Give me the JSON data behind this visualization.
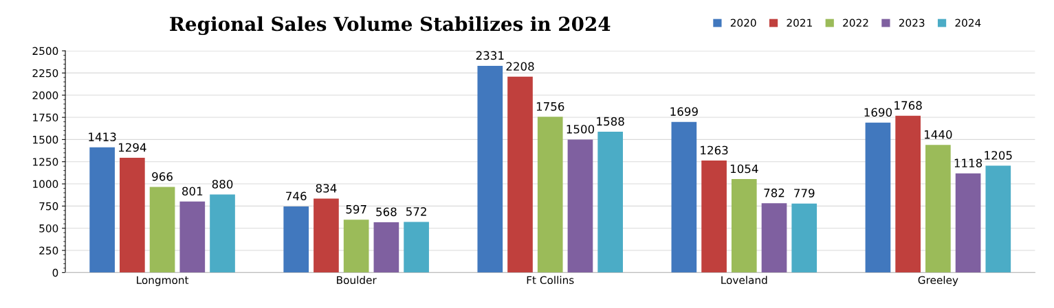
{
  "chart_data": {
    "type": "bar",
    "title": "Regional Sales Volume Stabilizes in 2024",
    "categories": [
      "Longmont",
      "Boulder",
      "Ft Collins",
      "Loveland",
      "Greeley"
    ],
    "series": [
      {
        "name": "2020",
        "color": "#4178be",
        "values": [
          1413,
          746,
          2331,
          1699,
          1690
        ]
      },
      {
        "name": "2021",
        "color": "#c0403d",
        "values": [
          1294,
          834,
          2208,
          1263,
          1768
        ]
      },
      {
        "name": "2022",
        "color": "#9bbb59",
        "values": [
          966,
          597,
          1756,
          1054,
          1440
        ]
      },
      {
        "name": "2023",
        "color": "#7f60a0",
        "values": [
          801,
          568,
          1500,
          782,
          1118
        ]
      },
      {
        "name": "2024",
        "color": "#4bacc6",
        "values": [
          880,
          572,
          1588,
          779,
          1205
        ]
      }
    ],
    "ylim": [
      0,
      2500
    ],
    "yticks": [
      0,
      250,
      500,
      750,
      1000,
      1250,
      1500,
      1750,
      2000,
      2250,
      2500
    ],
    "grid": "y",
    "legend": "top right",
    "data_labels": true
  }
}
